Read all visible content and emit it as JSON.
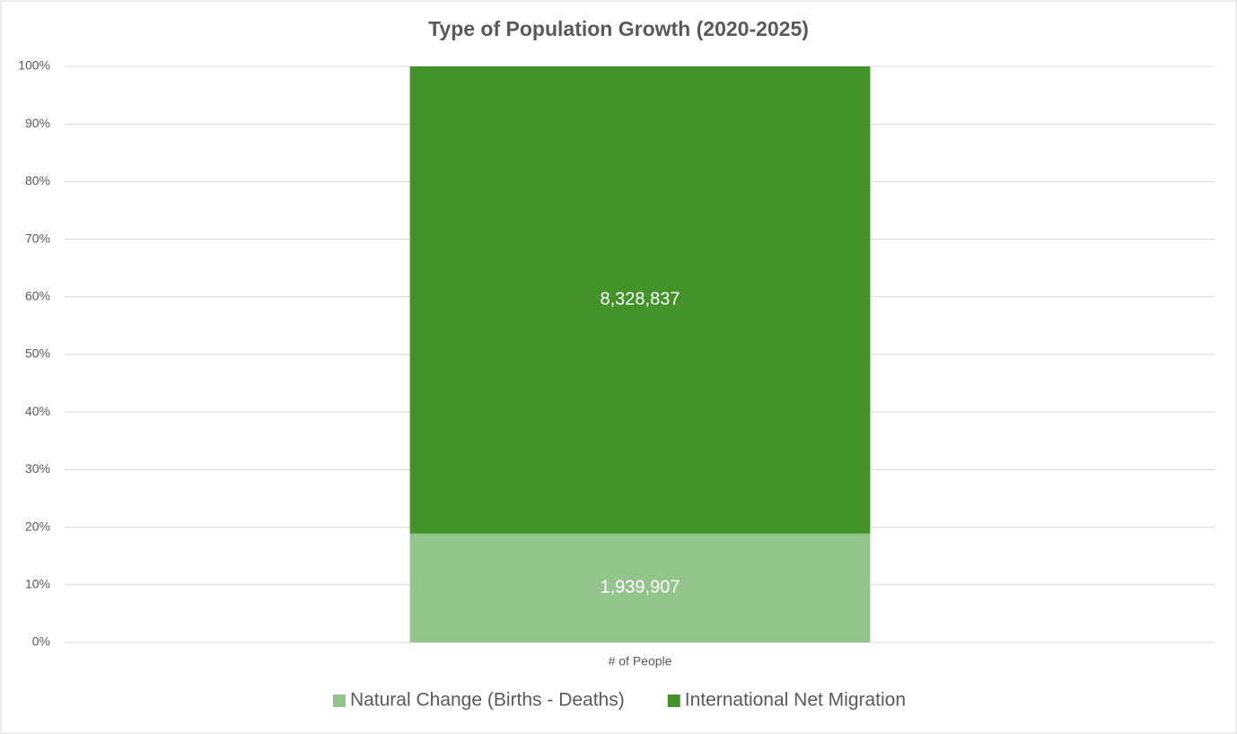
{
  "chart_data": {
    "type": "bar",
    "stacking": "percent",
    "title": "Type of Population Growth (2020-2025)",
    "categories": [
      "# of People"
    ],
    "series": [
      {
        "name": "Natural Change (Births - Deaths)",
        "color": "#93c48b",
        "values": [
          1939907
        ],
        "value_labels": [
          "1,939,907"
        ]
      },
      {
        "name": "International Net Migration",
        "color": "#43922a",
        "values": [
          8328837
        ],
        "value_labels": [
          "8,328,837"
        ]
      }
    ],
    "ylim": [
      0,
      100
    ],
    "yticks": [
      {
        "value": 0,
        "label": "0%"
      },
      {
        "value": 10,
        "label": "10%"
      },
      {
        "value": 20,
        "label": "20%"
      },
      {
        "value": 30,
        "label": "30%"
      },
      {
        "value": 40,
        "label": "40%"
      },
      {
        "value": 50,
        "label": "50%"
      },
      {
        "value": 60,
        "label": "60%"
      },
      {
        "value": 70,
        "label": "70%"
      },
      {
        "value": 80,
        "label": "80%"
      },
      {
        "value": 90,
        "label": "90%"
      },
      {
        "value": 100,
        "label": "100%"
      }
    ],
    "grid": true,
    "legend": "bottom"
  }
}
